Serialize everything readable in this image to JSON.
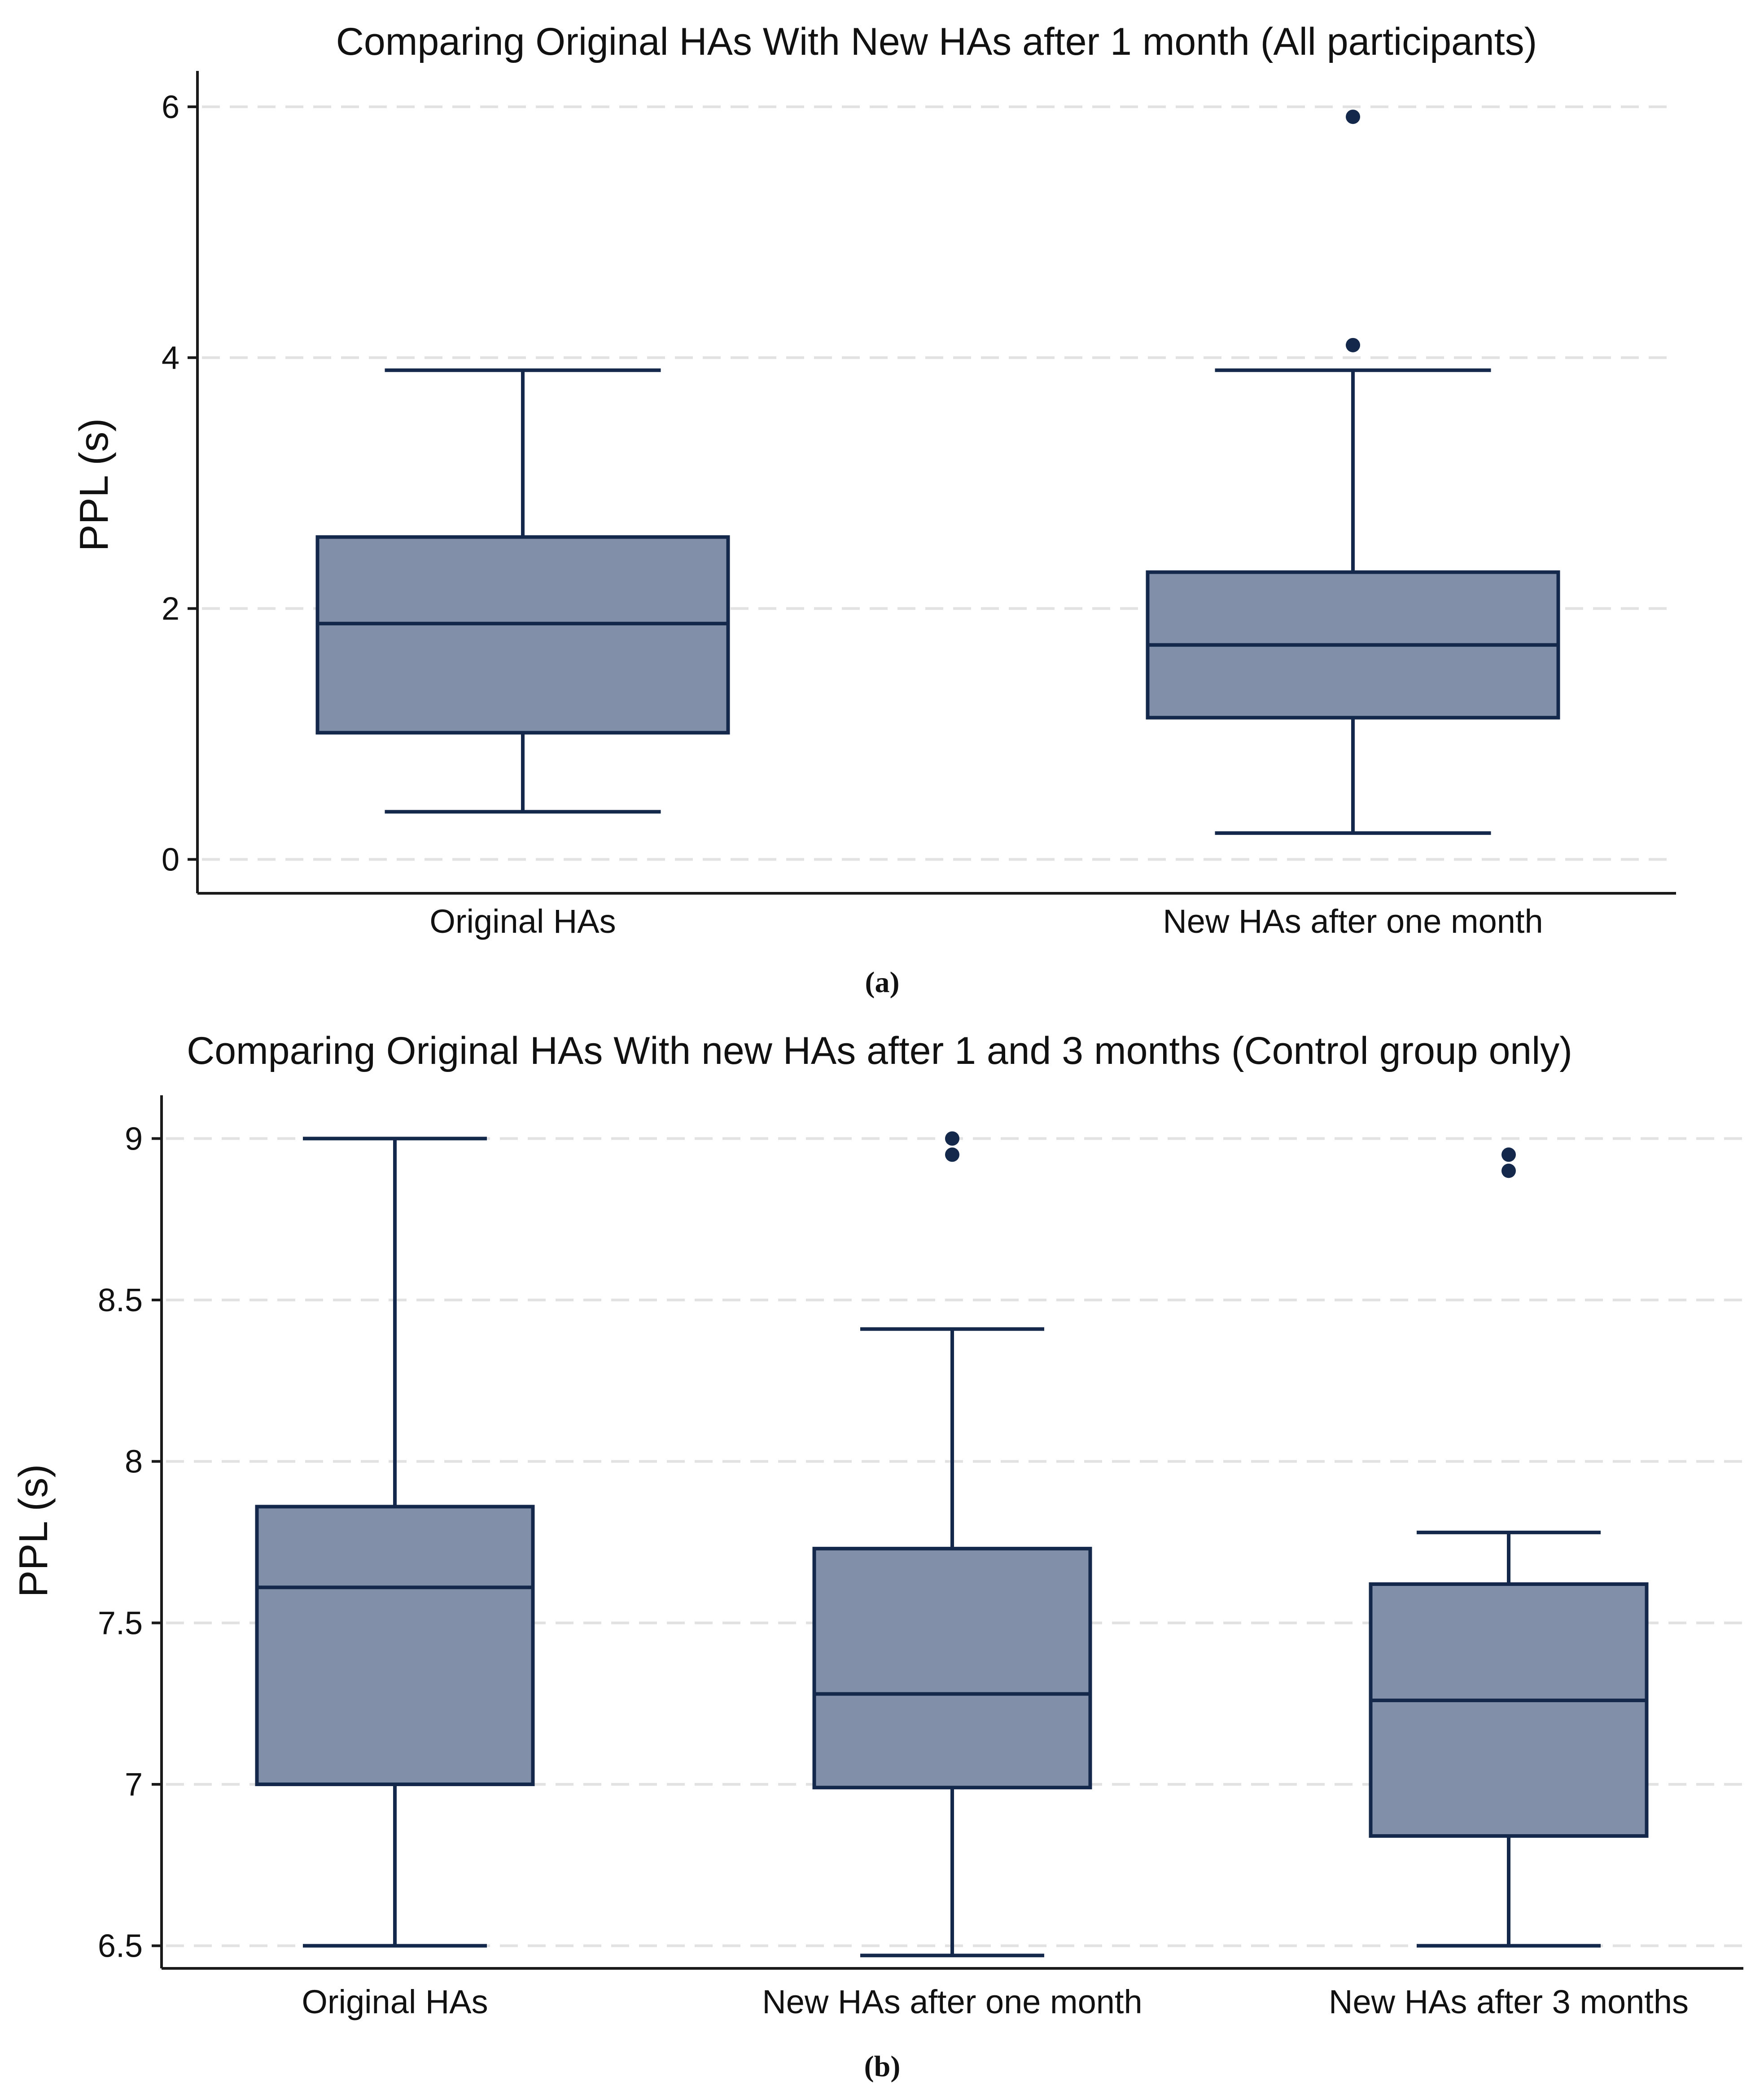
{
  "chart_data": [
    {
      "type": "box",
      "panel_label": "(a)",
      "title": "Comparing Original HAs With New HAs after 1 month (All participants)",
      "xlabel": "",
      "ylabel": "PPL (s)",
      "ylim": [
        -0.27,
        6.25
      ],
      "yticks": [
        0,
        2,
        4,
        6
      ],
      "ytick_labels": [
        "0",
        "2",
        "4",
        "6"
      ],
      "grid": true,
      "categories": [
        "Original HAs",
        "New HAs after one month"
      ],
      "boxes": [
        {
          "name": "Original HAs",
          "whisker_low": 0.38,
          "q1": 1.01,
          "median": 1.88,
          "q3": 2.57,
          "whisker_high": 3.9,
          "outliers": []
        },
        {
          "name": "New HAs after one month",
          "whisker_low": 0.21,
          "q1": 1.13,
          "median": 1.71,
          "q3": 2.29,
          "whisker_high": 3.9,
          "outliers": [
            4.1,
            5.92
          ]
        }
      ],
      "box_color": "#8190a8",
      "line_color": "#14284b"
    },
    {
      "type": "box",
      "panel_label": "(b)",
      "title": "Comparing Original HAs With new HAs after 1 and 3 months (Control group only)",
      "xlabel": "",
      "ylabel": "PPL (s)",
      "ylim": [
        6.43,
        9.12
      ],
      "yticks": [
        6.5,
        7,
        7.5,
        8,
        8.5,
        9
      ],
      "ytick_labels": [
        "6.5",
        "7",
        "7.5",
        "8",
        "8.5",
        "9"
      ],
      "grid": true,
      "categories": [
        "Original HAs",
        "New HAs after one month",
        "New HAs after 3 months"
      ],
      "boxes": [
        {
          "name": "Original HAs",
          "whisker_low": 6.5,
          "q1": 7.0,
          "median": 7.61,
          "q3": 7.86,
          "whisker_high": 9.0,
          "outliers": []
        },
        {
          "name": "New HAs after one month",
          "whisker_low": 6.47,
          "q1": 6.99,
          "median": 7.28,
          "q3": 7.73,
          "whisker_high": 8.41,
          "outliers": [
            8.95,
            9.0
          ]
        },
        {
          "name": "New HAs after 3 months",
          "whisker_low": 6.5,
          "q1": 6.84,
          "median": 7.26,
          "q3": 7.62,
          "whisker_high": 7.78,
          "outliers": [
            8.9,
            8.95
          ]
        }
      ],
      "box_color": "#8190a8",
      "line_color": "#14284b"
    }
  ]
}
